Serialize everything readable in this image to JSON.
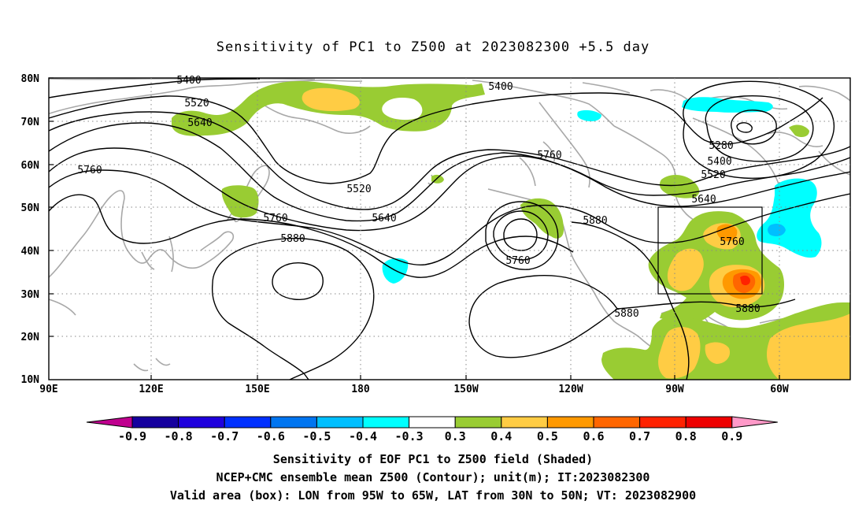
{
  "title": "Sensitivity of PC1 to Z500 at 2023082300 +5.5 day",
  "axes": {
    "lat_labels": [
      "80N",
      "70N",
      "60N",
      "50N",
      "40N",
      "30N",
      "20N",
      "10N"
    ],
    "lon_labels": [
      "90E",
      "120E",
      "150E",
      "180",
      "150W",
      "120W",
      "90W",
      "60W"
    ]
  },
  "contour_labels": [
    "5400",
    "5400",
    "5520",
    "5640",
    "5760",
    "5520",
    "5760",
    "5640",
    "5760",
    "5880",
    "5880",
    "5760",
    "5280",
    "5400",
    "5520",
    "5640",
    "5760",
    "5880",
    "5880"
  ],
  "colorbar": {
    "labels": [
      "-0.9",
      "-0.8",
      "-0.7",
      "-0.6",
      "-0.5",
      "-0.4",
      "-0.3",
      "0.3",
      "0.4",
      "0.5",
      "0.6",
      "0.7",
      "0.8",
      "0.9"
    ],
    "colors": [
      "#c0008f",
      "#15009e",
      "#1f00dd",
      "#0030ff",
      "#0075f0",
      "#00bfff",
      "#00ffff",
      "#ffffff",
      "#99cc33",
      "#ffcc44",
      "#ff9900",
      "#ff6600",
      "#ff2200",
      "#ee0000",
      "#ff99c8"
    ]
  },
  "valid_box": {
    "lon_from": "95W",
    "lon_to": "65W",
    "lat_from": "30N",
    "lat_to": "50N"
  },
  "footer": {
    "line1": "Sensitivity of EOF PC1 to Z500 field (Shaded)",
    "line2": "NCEP+CMC ensemble mean Z500 (Contour); unit(m); IT:2023082300",
    "line3": "Valid area (box): LON from 95W to 65W, LAT from 30N to 50N; VT: 2023082900"
  }
}
